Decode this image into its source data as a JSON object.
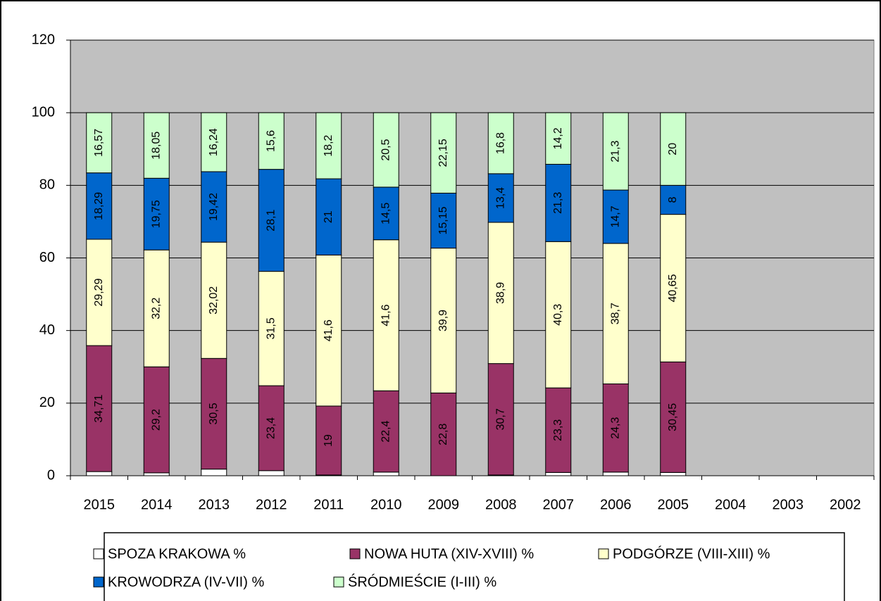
{
  "chart_data": {
    "type": "stacked_bar",
    "categories": [
      "2015",
      "2014",
      "2013",
      "2012",
      "2011",
      "2010",
      "2009",
      "2008",
      "2007",
      "2006",
      "2005",
      "2004",
      "2003",
      "2002"
    ],
    "series": [
      {
        "name": "SPOZA KRAKOWA %",
        "color": "#ffffff",
        "values": [
          1.14,
          0.8,
          1.82,
          1.4,
          0.2,
          1.0,
          0.0,
          0.2,
          0.9,
          1.0,
          0.9,
          null,
          null,
          null
        ]
      },
      {
        "name": "NOWA HUTA (XIV-XVIII) %",
        "color": "#993366",
        "values": [
          34.71,
          29.2,
          30.5,
          23.4,
          19,
          22.4,
          22.8,
          30.7,
          23.3,
          24.3,
          30.45,
          null,
          null,
          null
        ],
        "value_labels": [
          "34,71",
          "29,2",
          "30,5",
          "23,4",
          "19",
          "22,4",
          "22,8",
          "30,7",
          "23,3",
          "24,3",
          "30,45",
          null,
          null,
          null
        ]
      },
      {
        "name": "PODGÓRZE (VIII-XIII) %",
        "color": "#ffffcc",
        "values": [
          29.29,
          32.2,
          32.02,
          31.5,
          41.6,
          41.6,
          39.9,
          38.9,
          40.3,
          38.7,
          40.65,
          null,
          null,
          null
        ],
        "value_labels": [
          "29,29",
          "32,2",
          "32,02",
          "31,5",
          "41,6",
          "41,6",
          "39,9",
          "38,9",
          "40,3",
          "38,7",
          "40,65",
          null,
          null,
          null
        ]
      },
      {
        "name": "KROWODRZA (IV-VII) %",
        "color": "#0066cc",
        "values": [
          18.29,
          19.75,
          19.42,
          28.1,
          21,
          14.5,
          15.15,
          13.4,
          21.3,
          14.7,
          8,
          null,
          null,
          null
        ],
        "value_labels": [
          "18,29",
          "19,75",
          "19,42",
          "28,1",
          "21",
          "14,5",
          "15,15",
          "13,4",
          "21,3",
          "14,7",
          "8",
          null,
          null,
          null
        ]
      },
      {
        "name": "ŚRÓDMIEŚCIE (I-III) %",
        "color": "#ccffcc",
        "values": [
          16.57,
          18.05,
          16.24,
          15.6,
          18.2,
          20.5,
          22.15,
          16.8,
          14.2,
          21.3,
          20,
          null,
          null,
          null
        ],
        "value_labels": [
          "16,57",
          "18,05",
          "16,24",
          "15,6",
          "18,2",
          "20,5",
          "22,15",
          "16,8",
          "14,2",
          "21,3",
          "20",
          null,
          null,
          null
        ]
      }
    ],
    "ylim": [
      0,
      120
    ],
    "yticks": [
      0,
      20,
      40,
      60,
      80,
      100,
      120
    ],
    "grid": true,
    "legend": "bottom"
  }
}
